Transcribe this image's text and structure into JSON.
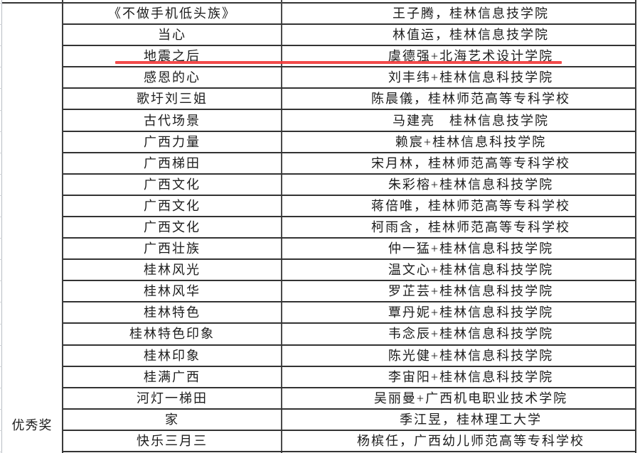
{
  "page": {
    "background_color": "#ffffff",
    "border_color": "#333333",
    "red_underline_color": "#f23b3b"
  },
  "table": {
    "award_category": "优秀奖",
    "rows": [
      {
        "title": "《不做手机低头族》",
        "author": "王子腾，桂林信息技学院",
        "underlined": false
      },
      {
        "title": "当心",
        "author": "林值运，桂林信息技学院",
        "underlined": false
      },
      {
        "title": "地震之后",
        "author": "虞德强+北海艺术设计学院",
        "underlined": true
      },
      {
        "title": "感恩的心",
        "author": "刘丰纬+桂林信息科技学院",
        "underlined": false
      },
      {
        "title": "歌圩刘三姐",
        "author": "陈晨儀，桂林师范高等专科学校",
        "underlined": false
      },
      {
        "title": "古代场景",
        "author": "马建亮　桂林信息技学院",
        "underlined": false
      },
      {
        "title": "广西力量",
        "author": "赖宸+桂林信息科技学院",
        "underlined": false
      },
      {
        "title": "广西梯田",
        "author": "宋月林，桂林师范高等专科学校",
        "underlined": false
      },
      {
        "title": "广西文化",
        "author": "朱彩榕+桂林信息科技学院",
        "underlined": false
      },
      {
        "title": "广西文化",
        "author": "蒋倍唯，桂林师范高等专科学校",
        "underlined": false
      },
      {
        "title": "广西文化",
        "author": "柯雨含，桂林师范高等专科学校",
        "underlined": false
      },
      {
        "title": "广西壮族",
        "author": "仲一猛+桂林信息科技学院",
        "underlined": false
      },
      {
        "title": "桂林风光",
        "author": "温文心+桂林信息科技学院",
        "underlined": false
      },
      {
        "title": "桂林风华",
        "author": "罗芷芸+桂林信息科技学院",
        "underlined": false
      },
      {
        "title": "桂林特色",
        "author": "覃丹妮+桂林信息科技学院",
        "underlined": false
      },
      {
        "title": "桂林特色印象",
        "author": "韦念辰+桂林信息科技学院",
        "underlined": false
      },
      {
        "title": "桂林印象",
        "author": "陈光健+桂林信息科技学院",
        "underlined": false
      },
      {
        "title": "桂满广西",
        "author": "李宙阳+桂林信息科技学院",
        "underlined": false
      },
      {
        "title": "河灯一梯田",
        "author": "吴丽曼+广西机电职业技术学院",
        "underlined": false
      },
      {
        "title": "家",
        "author": "季江昱，桂林理工大学",
        "underlined": false
      },
      {
        "title": "快乐三月三",
        "author": "杨槟任，广西幼儿师范高等专科学校",
        "underlined": false
      }
    ]
  }
}
